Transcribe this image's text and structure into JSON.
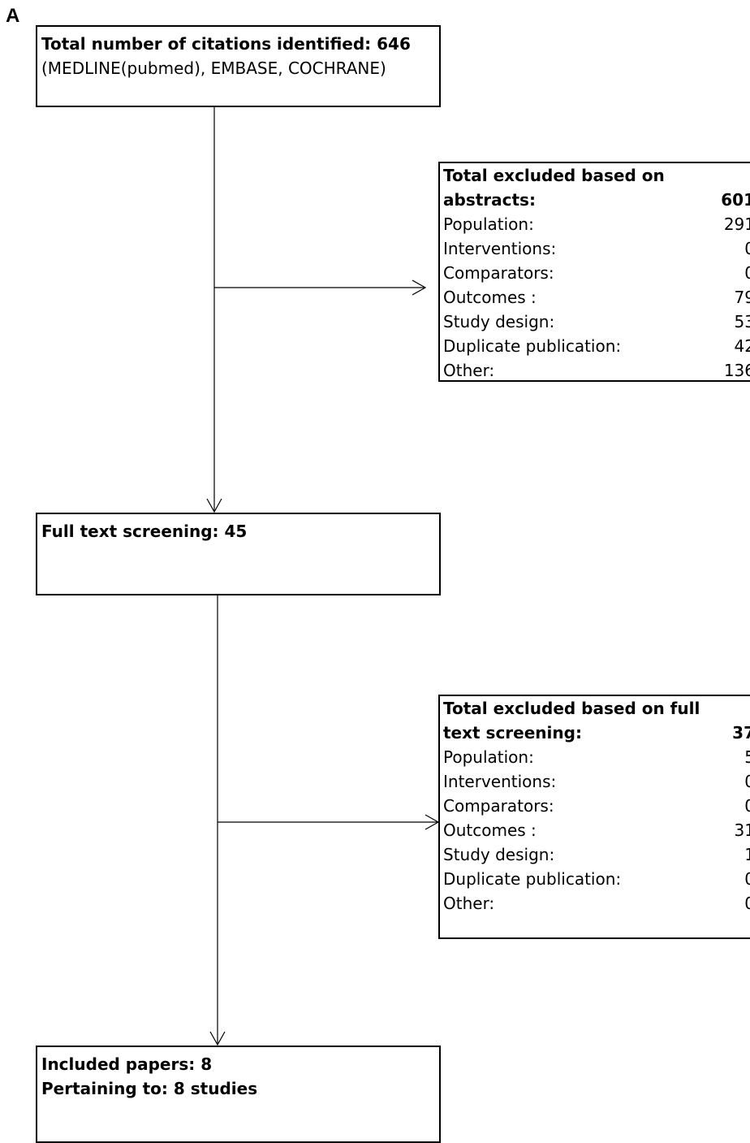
{
  "panel_label": "A",
  "identified": {
    "title": "Total number of citations identified: 646",
    "sources": "(MEDLINE(pubmed), EMBASE, COCHRANE)"
  },
  "abstract_exclusion": {
    "title_line1": "Total excluded based on",
    "title_line2": "abstracts:",
    "total": "601",
    "rows": [
      {
        "label": "Population:",
        "value": "291"
      },
      {
        "label": "Interventions:",
        "value": "0"
      },
      {
        "label": "Comparators:",
        "value": "0"
      },
      {
        "label": "Outcomes :",
        "value": "79"
      },
      {
        "label": "Study design:",
        "value": "53"
      },
      {
        "label": "Duplicate publication:",
        "value": "42"
      },
      {
        "label": "Other:",
        "value": "136"
      }
    ]
  },
  "full_text": {
    "title": "Full text screening: 45"
  },
  "fulltext_exclusion": {
    "title_line1": "Total excluded based on full",
    "title_line2": "text screening:",
    "total": "37",
    "rows": [
      {
        "label": "Population:",
        "value": "5"
      },
      {
        "label": "Interventions:",
        "value": "0"
      },
      {
        "label": "Comparators:",
        "value": "0"
      },
      {
        "label": "Outcomes :",
        "value": "31"
      },
      {
        "label": "Study design:",
        "value": "1"
      },
      {
        "label": "Duplicate publication:",
        "value": "0"
      },
      {
        "label": "Other:",
        "value": "0"
      }
    ]
  },
  "included": {
    "line1": "Included papers: 8",
    "line2": "Pertaining to: 8 studies"
  }
}
